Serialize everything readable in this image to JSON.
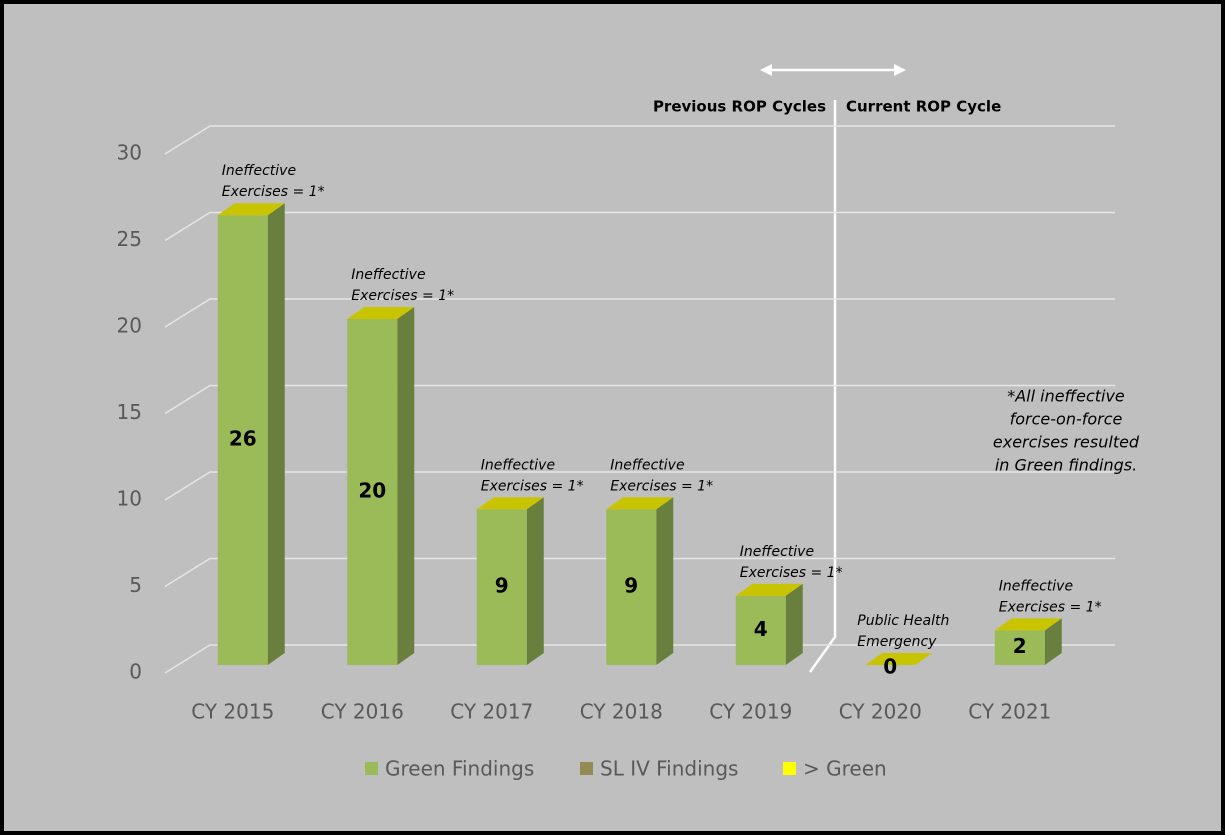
{
  "chart_data": {
    "type": "bar3d_stacked",
    "categories": [
      "CY 2015",
      "CY 2016",
      "CY 2017",
      "CY 2018",
      "CY 2019",
      "CY 2020",
      "CY 2021"
    ],
    "series": [
      {
        "name": "Green Findings",
        "color": "#9bbb59",
        "values": [
          26,
          20,
          9,
          9,
          4,
          0,
          2
        ]
      },
      {
        "name": "SL IV Findings",
        "color": "#948a54",
        "values": [
          0,
          0,
          0,
          0,
          0,
          0,
          0
        ]
      },
      {
        "name": "> Green",
        "color": "#ffff00",
        "values": [
          0,
          0,
          0,
          0,
          0,
          0,
          0
        ]
      }
    ],
    "ylim": [
      0,
      30
    ],
    "yticks": [
      0,
      5,
      10,
      15,
      20,
      25,
      30
    ],
    "grid": true,
    "legend": "bottom",
    "bar_annotations": [
      [
        "Ineffective",
        "Exercises = 1*"
      ],
      [
        "Ineffective",
        "Exercises = 1*"
      ],
      [
        "Ineffective",
        "Exercises = 1*"
      ],
      [
        "Ineffective",
        "Exercises = 1*"
      ],
      [
        "Ineffective",
        "Exercises = 1*"
      ],
      [
        "Public Health",
        "Emergency"
      ],
      [
        "Ineffective",
        "Exercises = 1*"
      ]
    ],
    "region_labels": [
      "Previous ROP Cycles",
      "Current ROP Cycle"
    ],
    "note": [
      "*All ineffective",
      "force-on-force",
      "exercises resulted",
      "in Green findings."
    ]
  }
}
